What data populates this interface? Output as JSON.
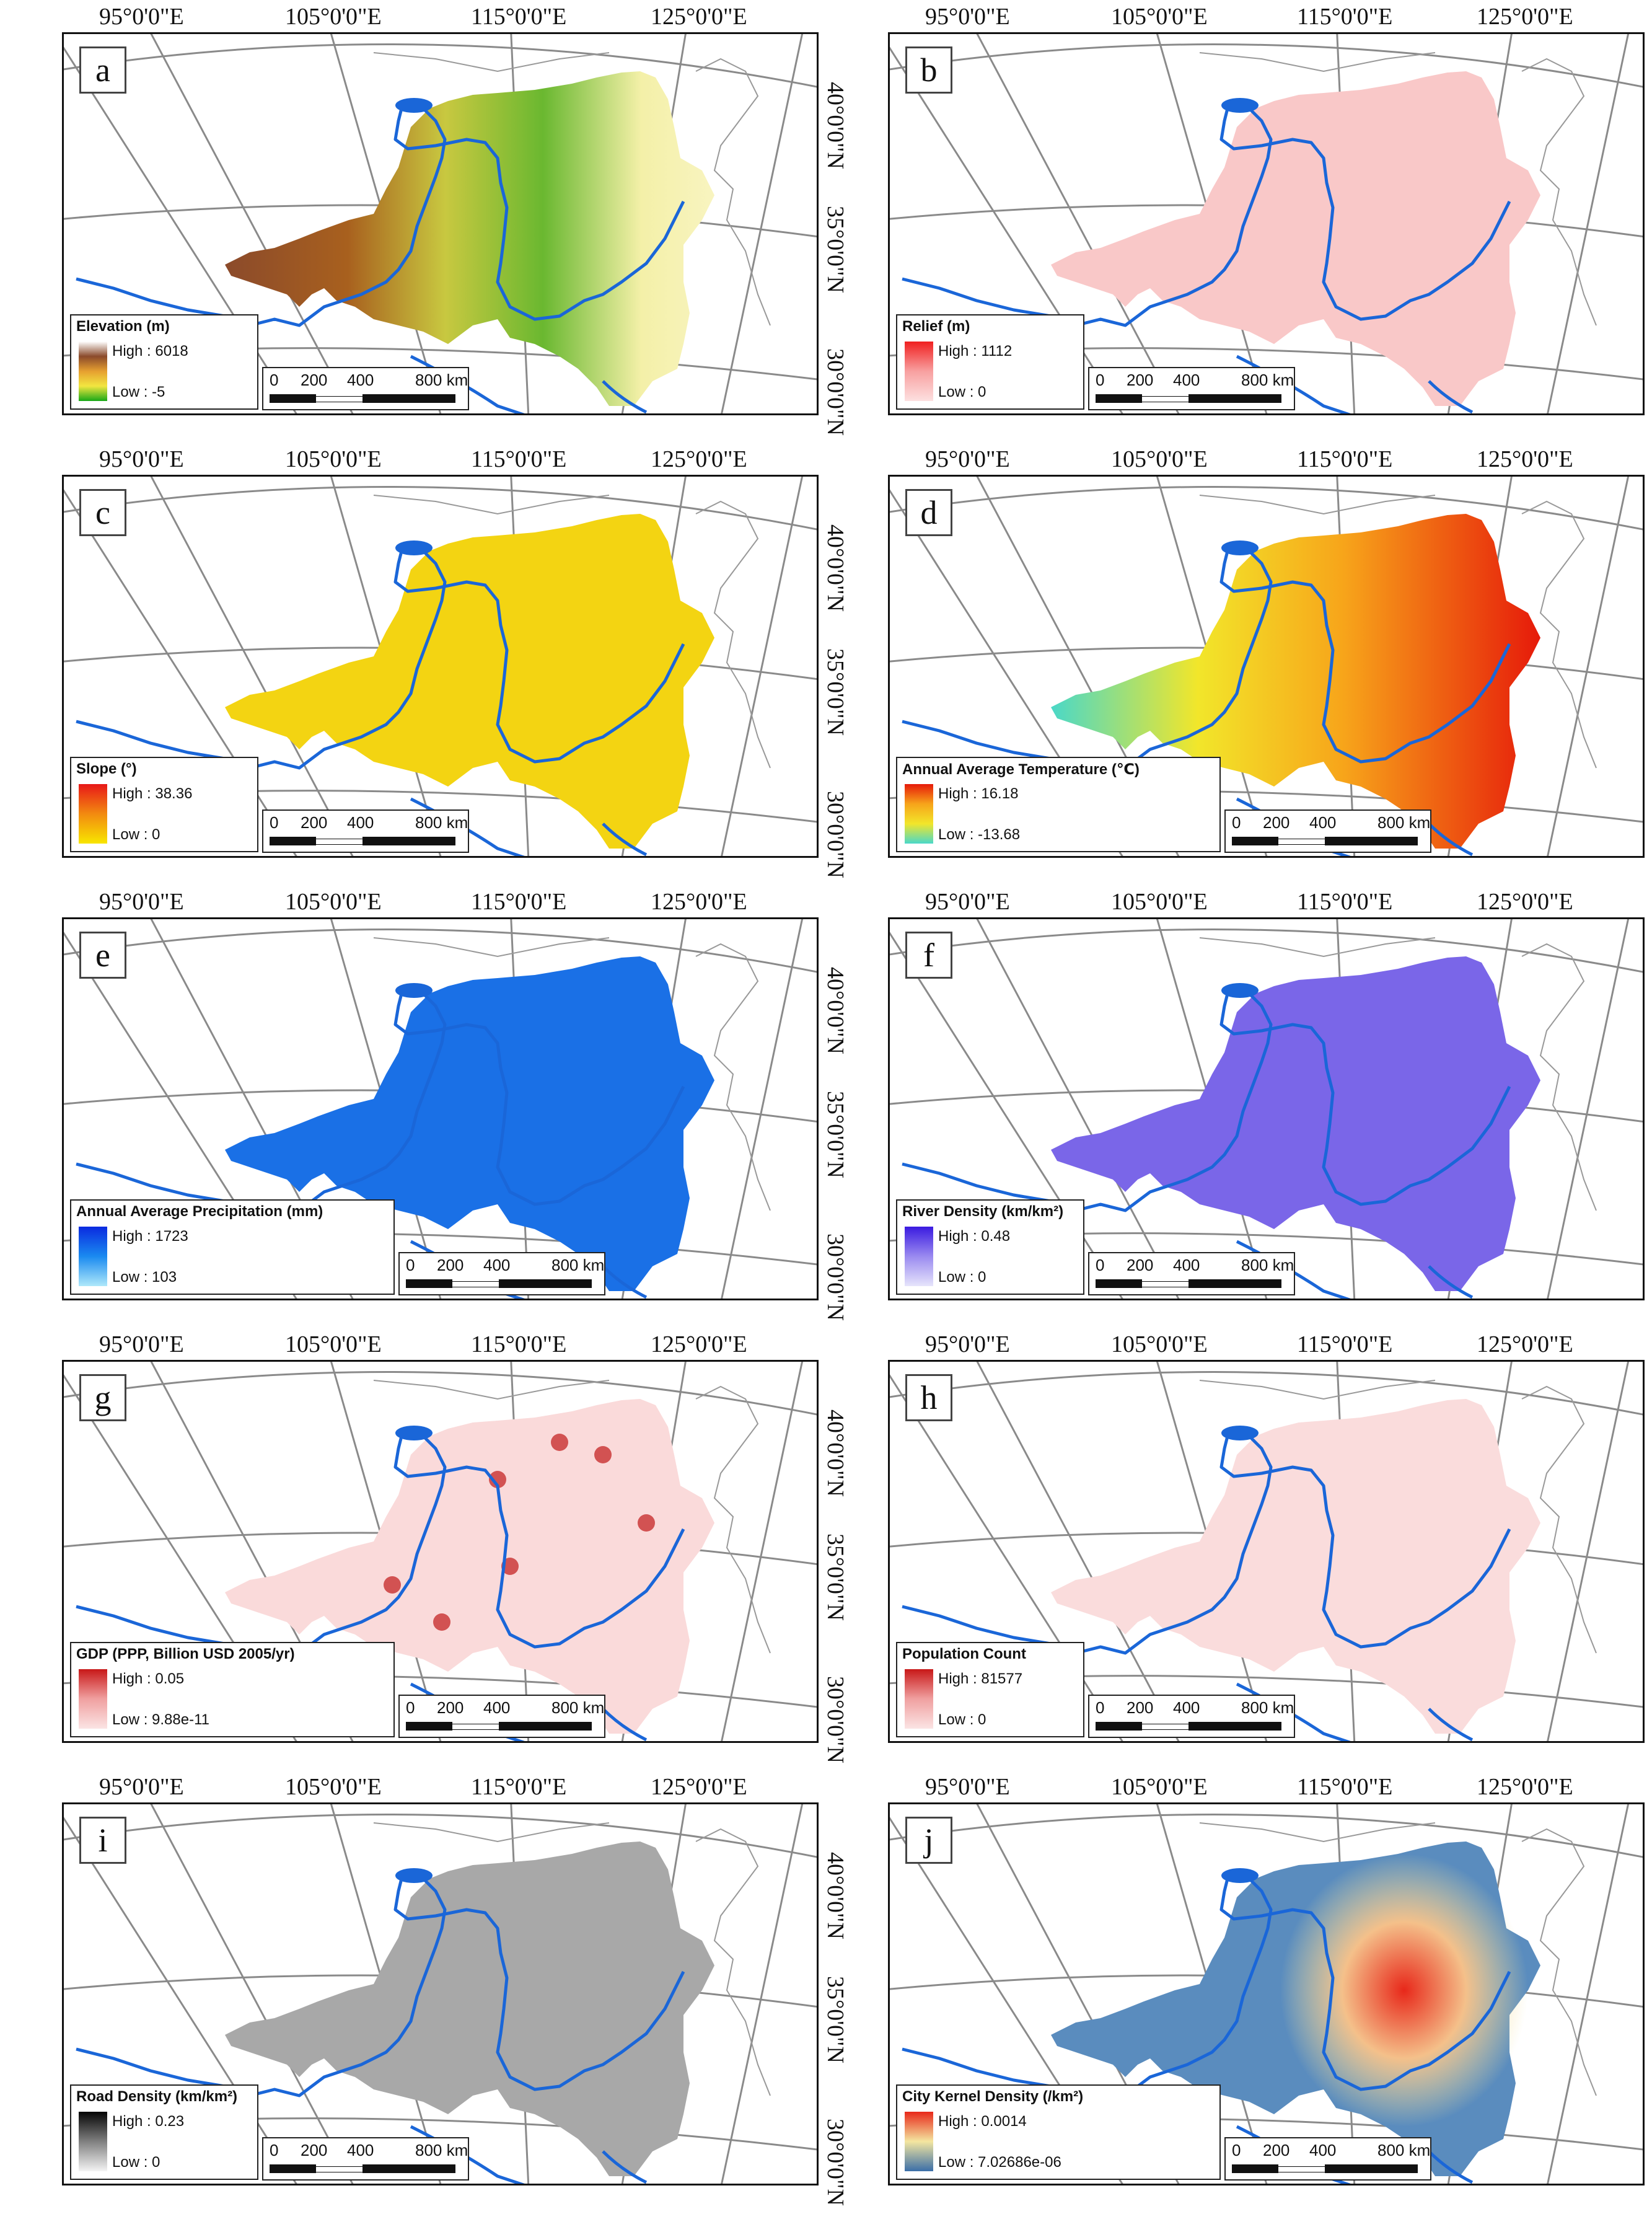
{
  "labels": {
    "lon": [
      "95°0'0\"E",
      "105°0'0\"E",
      "115°0'0\"E",
      "125°0'0\"E"
    ],
    "lat": [
      "40°0'0\"N",
      "35°0'0\"N",
      "30°0'0\"N"
    ],
    "scale": [
      "0",
      "200",
      "400",
      "800 km"
    ]
  },
  "panels": [
    {
      "letter": "a",
      "legend_title": "Elevation (m)",
      "high": "High : 6018",
      "low": "Low : -5",
      "ramp": [
        "#ffffff",
        "#8b4a2b",
        "#e6a030",
        "#f2e640",
        "#18a818"
      ],
      "fill": "elev"
    },
    {
      "letter": "b",
      "legend_title": "Relief (m)",
      "high": "High : 1112",
      "low": "Low : 0",
      "ramp": [
        "#f02020",
        "#f8a0a0",
        "#fde0e0"
      ],
      "fill": "#f9c8c8"
    },
    {
      "letter": "c",
      "legend_title": "Slope (°)",
      "high": "High : 38.36",
      "low": "Low : 0",
      "ramp": [
        "#e81818",
        "#f28a10",
        "#f8e600"
      ],
      "fill": "#f3d412"
    },
    {
      "letter": "d",
      "legend_title": "Annual Average Temperature (℃)",
      "high": "High : 16.18",
      "low": "Low : -13.68",
      "ramp": [
        "#e61a0a",
        "#f7a41a",
        "#f2e62a",
        "#4ad8c8"
      ],
      "fill": "#f0780e"
    },
    {
      "letter": "e",
      "legend_title": "Annual Average Precipitation (mm)",
      "high": "High : 1723",
      "low": "Low : 103",
      "ramp": [
        "#0a2ae0",
        "#1a8af0",
        "#aee8fa"
      ],
      "fill": "#1a70e6"
    },
    {
      "letter": "f",
      "legend_title": "River Density (km/km²)",
      "high": "High : 0.48",
      "low": "Low : 0",
      "ramp": [
        "#3a1ae0",
        "#9a8af0",
        "#e6e4fb"
      ],
      "fill": "#7a66e8"
    },
    {
      "letter": "g",
      "legend_title": "GDP (PPP, Billion USD 2005/yr)",
      "high": "High : 0.05",
      "low": "Low : 9.88e-11",
      "ramp": [
        "#c81818",
        "#f0a0a0",
        "#fbe4e4"
      ],
      "fill": "#fadada"
    },
    {
      "letter": "h",
      "legend_title": "Population Count",
      "high": "High : 81577",
      "low": "Low : 0",
      "ramp": [
        "#c81818",
        "#f0a0a0",
        "#fbe4e4"
      ],
      "fill": "#fadcdc"
    },
    {
      "letter": "i",
      "legend_title": "Road Density (km/km²)",
      "high": "High : 0.23",
      "low": "Low : 0",
      "ramp": [
        "#050505",
        "#808080",
        "#f4f4f4"
      ],
      "fill": "#a8a8a8"
    },
    {
      "letter": "j",
      "legend_title": "City Kernel Density (/km²)",
      "high": "High : 0.0014",
      "low": "Low : 7.02686e-06",
      "ramp": [
        "#e8281a",
        "#f4e6a0",
        "#3a6ea8"
      ],
      "fill": "#5a8cbe"
    }
  ]
}
